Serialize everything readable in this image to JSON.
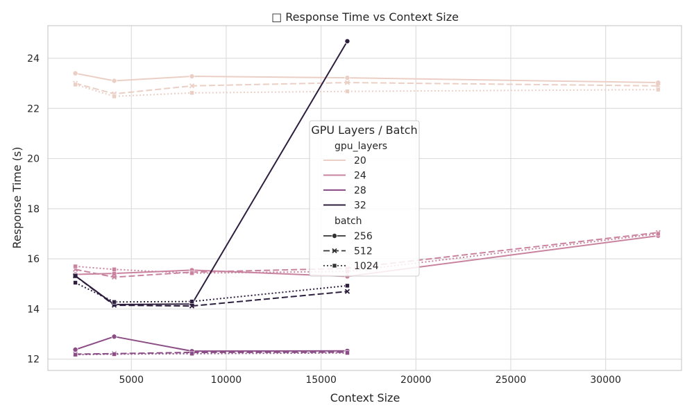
{
  "chart_data": {
    "type": "line",
    "title": "□ Response Time vs Context Size",
    "xlabel": "Context Size",
    "ylabel": "Response Time (s)",
    "xlim": [
      600,
      34000
    ],
    "ylim": [
      11.55,
      25.3
    ],
    "xticks": [
      5000,
      10000,
      15000,
      20000,
      25000,
      30000
    ],
    "yticks": [
      12,
      14,
      16,
      18,
      20,
      22,
      24
    ],
    "grid": true,
    "legend": {
      "title": "GPU Layers / Batch",
      "placement": "center",
      "hue_title": "gpu_layers",
      "hue_entries": [
        "20",
        "24",
        "28",
        "32"
      ],
      "style_title": "batch",
      "style_entries": [
        "256",
        "512",
        "1024"
      ]
    },
    "hue_colors": {
      "20": "#ebcfc5",
      "24": "#c9839e",
      "28": "#8b4d85",
      "32": "#2d1e3e"
    },
    "style_dash": {
      "256": "none",
      "512": "9,4",
      "1024": "2,3"
    },
    "style_marker": {
      "256": "circle",
      "512": "x",
      "1024": "square"
    },
    "series": [
      {
        "gpu_layers": "20",
        "batch": "256",
        "x": [
          2048,
          4096,
          8192,
          16384,
          32768
        ],
        "y": [
          23.4,
          23.1,
          23.28,
          23.22,
          23.03
        ]
      },
      {
        "gpu_layers": "20",
        "batch": "512",
        "x": [
          2048,
          4096,
          8192,
          16384,
          32768
        ],
        "y": [
          23.0,
          22.58,
          22.9,
          23.03,
          22.9
        ]
      },
      {
        "gpu_layers": "20",
        "batch": "1024",
        "x": [
          2048,
          4096,
          8192,
          16384,
          32768
        ],
        "y": [
          22.95,
          22.48,
          22.62,
          22.68,
          22.75
        ]
      },
      {
        "gpu_layers": "24",
        "batch": "256",
        "x": [
          2048,
          4096,
          8192,
          16384,
          32768
        ],
        "y": [
          15.38,
          15.42,
          15.55,
          15.3,
          16.92
        ]
      },
      {
        "gpu_layers": "24",
        "batch": "512",
        "x": [
          2048,
          4096,
          8192,
          16384,
          32768
        ],
        "y": [
          15.58,
          15.27,
          15.47,
          15.62,
          17.05
        ]
      },
      {
        "gpu_layers": "24",
        "batch": "1024",
        "x": [
          2048,
          4096,
          8192,
          16384,
          32768
        ],
        "y": [
          15.7,
          15.58,
          15.43,
          15.5,
          17.0
        ]
      },
      {
        "gpu_layers": "28",
        "batch": "256",
        "x": [
          2048,
          4096,
          8192,
          16384
        ],
        "y": [
          12.38,
          12.9,
          12.32,
          12.33
        ]
      },
      {
        "gpu_layers": "28",
        "batch": "512",
        "x": [
          2048,
          4096,
          8192,
          16384
        ],
        "y": [
          12.2,
          12.22,
          12.27,
          12.28
        ]
      },
      {
        "gpu_layers": "28",
        "batch": "1024",
        "x": [
          2048,
          4096,
          8192,
          16384
        ],
        "y": [
          12.18,
          12.2,
          12.22,
          12.25
        ]
      },
      {
        "gpu_layers": "32",
        "batch": "256",
        "x": [
          2048,
          4096,
          8192,
          16384
        ],
        "y": [
          15.32,
          14.18,
          14.2,
          24.68
        ]
      },
      {
        "gpu_layers": "32",
        "batch": "512",
        "x": [
          2048,
          4096,
          8192,
          16384
        ],
        "y": [
          15.32,
          14.15,
          14.12,
          14.7
        ]
      },
      {
        "gpu_layers": "32",
        "batch": "1024",
        "x": [
          2048,
          4096,
          8192,
          16384
        ],
        "y": [
          15.05,
          14.28,
          14.3,
          14.93
        ]
      }
    ]
  }
}
